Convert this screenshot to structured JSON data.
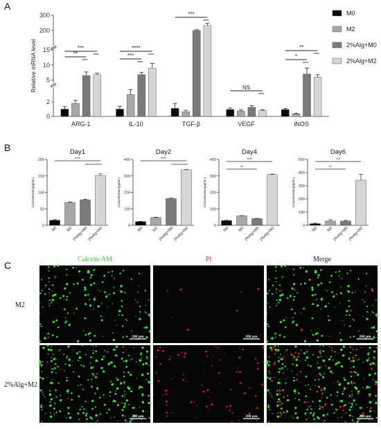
{
  "colors": {
    "M0": "#0a0a0a",
    "M2": "#a8a8a8",
    "2%Alg+M0": "#7a7a7a",
    "2%Alg+M2": "#d6d6d6"
  },
  "panel_labels": {
    "a": "A",
    "b": "B",
    "c": "C"
  },
  "legend": [
    "M0",
    "M2",
    "2%Alg+M0",
    "2%Alg+M2"
  ],
  "chart_data": [
    {
      "type": "bar",
      "panel": "A",
      "ylabel": "Relative mRNA level",
      "categories": [
        "ARG-1",
        "IL-10",
        "TGF-β",
        "VEGF",
        "iNOS"
      ],
      "axis_segments": [
        {
          "range": [
            0,
            4
          ],
          "ticks": [
            "0",
            "2"
          ]
        },
        {
          "range": [
            4,
            15
          ],
          "ticks": [
            "5",
            "10",
            "15"
          ]
        },
        {
          "range": [
            100,
            300
          ],
          "ticks": [
            "200",
            "300"
          ]
        }
      ],
      "series": [
        {
          "name": "M0",
          "values": [
            1.0,
            1.0,
            1.1,
            0.95,
            0.95
          ],
          "errors": [
            0.35,
            0.4,
            0.7,
            0.2,
            0.15
          ]
        },
        {
          "name": "M2",
          "values": [
            1.8,
            3.0,
            0.65,
            0.75,
            0.35
          ],
          "errors": [
            0.4,
            0.7,
            0.2,
            0.15,
            0.08
          ]
        },
        {
          "name": "2%Alg+M0",
          "values": [
            6.5,
            6.8,
            200,
            1.25,
            7.0
          ],
          "errors": [
            1.2,
            0.8,
            5,
            0.25,
            2.0
          ]
        },
        {
          "name": "2%Alg+M2",
          "values": [
            6.8,
            9.0,
            232,
            0.8,
            6.0
          ],
          "errors": [
            0.5,
            1.5,
            15,
            0.12,
            0.8
          ]
        }
      ],
      "significance": [
        {
          "category": "ARG-1",
          "upper": "***",
          "lower": "**"
        },
        {
          "category": "IL-10",
          "upper": "****",
          "lower": "***"
        },
        {
          "category": "TGF-β",
          "upper": "***"
        },
        {
          "category": "VEGF",
          "upper": "NS"
        },
        {
          "category": "iNOS",
          "upper": "**",
          "lower": "*"
        }
      ]
    },
    {
      "type": "bar",
      "panel": "B",
      "title": "Day1",
      "ylabel": "Concentration(pg/mL)",
      "ylim": [
        0,
        200
      ],
      "yticks": [
        "0",
        "50",
        "100",
        "150",
        "200"
      ],
      "categories": [
        "M0",
        "M2",
        "2%Alg+M0",
        "2%Alg+M2"
      ],
      "values": [
        15,
        69,
        77,
        151
      ],
      "errors": [
        2,
        2,
        2,
        5
      ],
      "significance": "****"
    },
    {
      "type": "bar",
      "panel": "B",
      "title": "Day2",
      "ylabel": "Concentration(pg/mL)",
      "ylim": [
        0,
        400
      ],
      "yticks": [
        "0",
        "100",
        "200",
        "300",
        "400"
      ],
      "categories": [
        "M0",
        "M2",
        "2%Alg+M0",
        "2%Alg+M2"
      ],
      "values": [
        22,
        47,
        162,
        337
      ],
      "errors": [
        2,
        2,
        3,
        2
      ],
      "significance": "****"
    },
    {
      "type": "bar",
      "panel": "B",
      "title": "Day4",
      "ylabel": "Concentration(pg/mL)",
      "ylim": [
        0,
        400
      ],
      "yticks": [
        "0",
        "100",
        "200",
        "300",
        "400"
      ],
      "categories": [
        "M0",
        "M2",
        "2%Alg+M0",
        "2%Alg+M2"
      ],
      "values": [
        28,
        57,
        40,
        308
      ],
      "errors": [
        2,
        2,
        2,
        3
      ],
      "significance_upper": "****",
      "significance_lower": "**"
    },
    {
      "type": "bar",
      "panel": "B",
      "title": "Day6",
      "ylabel": "Concentration(pg/mL)",
      "ylim": [
        0,
        500
      ],
      "yticks": [
        "0",
        "100",
        "200",
        "300",
        "400",
        "500"
      ],
      "categories": [
        "M0",
        "M2",
        "2%Alg+M0",
        "2%Alg+M2"
      ],
      "values": [
        12,
        32,
        32,
        342
      ],
      "errors": [
        4,
        10,
        5,
        45
      ],
      "significance_upper": "***",
      "significance_lower": "**"
    }
  ],
  "micrographs": {
    "columns": [
      {
        "title": "Calcein-AM",
        "color": "#3fc83f"
      },
      {
        "title": "PI",
        "color": "#e0302a"
      },
      {
        "title": "Merge",
        "color": "#222222"
      }
    ],
    "rows": [
      "M2",
      "2%Alg+M2"
    ],
    "scale_label": "200 μm"
  }
}
